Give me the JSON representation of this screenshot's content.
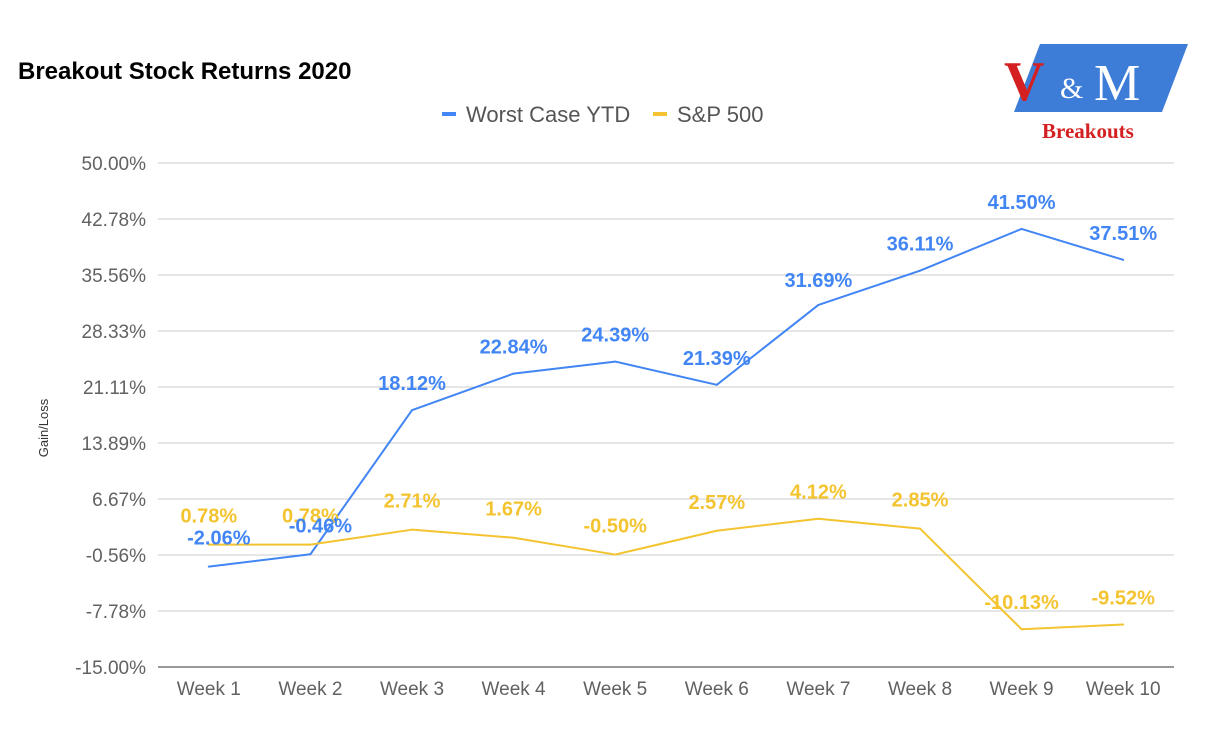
{
  "chart_data": {
    "type": "line",
    "title": "Breakout Stock Returns 2020",
    "ylabel": "Gain/Loss",
    "xlabel": "",
    "categories": [
      "Week 1",
      "Week 2",
      "Week 3",
      "Week 4",
      "Week 5",
      "Week 6",
      "Week 7",
      "Week 8",
      "Week 9",
      "Week 10"
    ],
    "y_ticks": [
      "50.00%",
      "42.78%",
      "35.56%",
      "28.33%",
      "21.11%",
      "13.89%",
      "6.67%",
      "-0.56%",
      "-7.78%",
      "-15.00%"
    ],
    "ylim": [
      -15.0,
      50.0
    ],
    "grid": true,
    "legend_position": "top-center",
    "series": [
      {
        "name": "Worst Case YTD",
        "color": "#4285f4",
        "values": [
          -2.06,
          -0.46,
          18.12,
          22.84,
          24.39,
          21.39,
          31.69,
          36.11,
          41.5,
          37.51
        ],
        "labels": [
          "-2.06%",
          "-0.46%",
          "18.12%",
          "22.84%",
          "24.39%",
          "21.39%",
          "31.69%",
          "36.11%",
          "41.50%",
          "37.51%"
        ]
      },
      {
        "name": "S&P 500",
        "color": "#f4c430",
        "values": [
          0.78,
          0.78,
          2.71,
          1.67,
          -0.5,
          2.57,
          4.12,
          2.85,
          -10.13,
          -9.52
        ],
        "labels": [
          "0.78%",
          "0.78%",
          "2.71%",
          "1.67%",
          "-0.50%",
          "2.57%",
          "4.12%",
          "2.85%",
          "-10.13%",
          "-9.52%"
        ]
      }
    ]
  },
  "logo": {
    "v": "V",
    "amp": "&",
    "m": "M",
    "tagline": "Breakouts",
    "blue": "#3d7dd8",
    "red": "#d42020"
  }
}
